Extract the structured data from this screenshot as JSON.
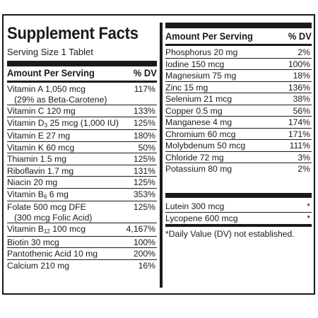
{
  "title": "Supplement Facts",
  "serving_size": "Serving Size 1 Tablet",
  "left_header": {
    "amount": "Amount Per Serving",
    "dv": "% DV"
  },
  "right_header": {
    "amount": "Amount Per Serving",
    "dv": "% DV"
  },
  "left_rows": [
    {
      "name": "Vitamin A 1,050 mcg",
      "sub": "(29% as Beta-Carotene)",
      "dv": "117%"
    },
    {
      "name": "Vitamin C 120 mg",
      "dv": "133%"
    },
    {
      "name_pre": "Vitamin D",
      "name_sub": "3",
      "name_post": " 25 mcg (1,000 IU)",
      "dv": "125%"
    },
    {
      "name": "Vitamin E 27 mg",
      "dv": "180%"
    },
    {
      "name": "Vitamin K 60 mcg",
      "dv": "50%"
    },
    {
      "name": "Thiamin 1.5 mg",
      "dv": "125%"
    },
    {
      "name": "Riboflavin 1.7 mg",
      "dv": "131%"
    },
    {
      "name": "Niacin 20 mg",
      "dv": "125%"
    },
    {
      "name_pre": "Vitamin B",
      "name_sub": "6",
      "name_post": " 6 mg",
      "dv": "353%"
    },
    {
      "name": "Folate 500 mcg DFE",
      "sub": "(300 mcg Folic Acid)",
      "dv": "125%"
    },
    {
      "name_pre": "Vitamin B",
      "name_sub": "12",
      "name_post": " 100 mcg",
      "dv": "4,167%"
    },
    {
      "name": "Biotin 30 mcg",
      "dv": "100%"
    },
    {
      "name": "Pantothenic Acid 10 mg",
      "dv": "200%"
    },
    {
      "name": "Calcium 210 mg",
      "dv": "16%"
    }
  ],
  "right_rows": [
    {
      "name": "Phosphorus 20 mg",
      "dv": "2%"
    },
    {
      "name": "Iodine 150 mcg",
      "dv": "100%"
    },
    {
      "name": "Magnesium 75 mg",
      "dv": "18%"
    },
    {
      "name": "Zinc 15 mg",
      "dv": "136%"
    },
    {
      "name": "Selenium 21 mcg",
      "dv": "38%"
    },
    {
      "name": "Copper 0.5 mg",
      "dv": "56%"
    },
    {
      "name": "Manganese 4 mg",
      "dv": "174%"
    },
    {
      "name": "Chromium 60 mcg",
      "dv": "171%"
    },
    {
      "name": "Molybdenum 50 mcg",
      "dv": "111%"
    },
    {
      "name": "Chloride 72 mg",
      "dv": "3%"
    },
    {
      "name": "Potassium 80 mg",
      "dv": "2%"
    }
  ],
  "right_extra_rows": [
    {
      "name": "Lutein 300 mcg",
      "dv": "*"
    },
    {
      "name": "Lycopene 600 mcg",
      "dv": "*"
    }
  ],
  "footnote": "*Daily Value (DV) not established."
}
